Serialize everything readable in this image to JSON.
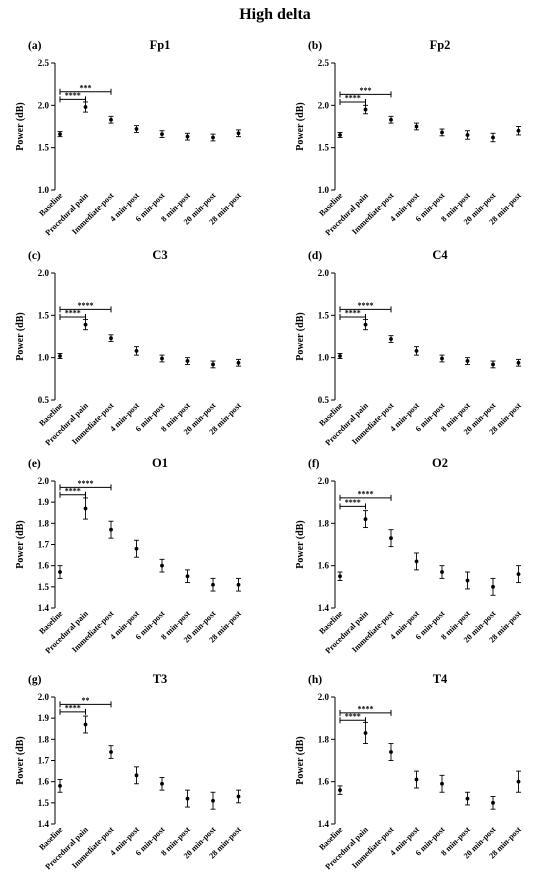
{
  "figure_title": "High delta",
  "chart_data": [
    {
      "type": "scatter",
      "panel": "(a)",
      "title": "Fp1",
      "ylabel": "Power (dB)",
      "ylim": [
        1.0,
        2.5
      ],
      "yticks": [
        1.0,
        1.5,
        2.0,
        2.5
      ],
      "ytick_labels": [
        "1.0",
        "1.5",
        "2.0",
        "2.5"
      ],
      "categories": [
        "Baseline",
        "Procedural pain",
        "Immediate-post",
        "4 min-post",
        "6 min-post",
        "8 min-post",
        "20 min-post",
        "28 min-post"
      ],
      "values": [
        1.66,
        1.98,
        1.83,
        1.72,
        1.66,
        1.63,
        1.62,
        1.67
      ],
      "errors": [
        0.03,
        0.06,
        0.04,
        0.04,
        0.04,
        0.04,
        0.04,
        0.04
      ],
      "annotations": [
        {
          "from": "Baseline",
          "to": "Procedural pain",
          "y": 2.07,
          "label": "****"
        },
        {
          "from": "Baseline",
          "to": "Immediate-post",
          "y": 2.16,
          "label": "***"
        }
      ]
    },
    {
      "type": "scatter",
      "panel": "(b)",
      "title": "Fp2",
      "ylabel": "Power (dB)",
      "ylim": [
        1.0,
        2.5
      ],
      "yticks": [
        1.0,
        1.5,
        2.0,
        2.5
      ],
      "ytick_labels": [
        "1.0",
        "1.5",
        "2.0",
        "2.5"
      ],
      "categories": [
        "Baseline",
        "Procedural pain",
        "Immediate-post",
        "4 min-post",
        "6 min-post",
        "8 min-post",
        "20 min-post",
        "28 min-post"
      ],
      "values": [
        1.65,
        1.95,
        1.83,
        1.75,
        1.68,
        1.65,
        1.62,
        1.7
      ],
      "errors": [
        0.03,
        0.05,
        0.04,
        0.04,
        0.04,
        0.05,
        0.05,
        0.05
      ],
      "annotations": [
        {
          "from": "Baseline",
          "to": "Procedural pain",
          "y": 2.04,
          "label": "****"
        },
        {
          "from": "Baseline",
          "to": "Immediate-post",
          "y": 2.13,
          "label": "***"
        }
      ]
    },
    {
      "type": "scatter",
      "panel": "(c)",
      "title": "C3",
      "ylabel": "Power (dB)",
      "ylim": [
        0.5,
        2.0
      ],
      "yticks": [
        0.5,
        1.0,
        1.5,
        2.0
      ],
      "ytick_labels": [
        "0.5",
        "1.0",
        "1.5",
        "2.0"
      ],
      "categories": [
        "Baseline",
        "Procedural pain",
        "Immediate-post",
        "4 min-post",
        "6 min-post",
        "8 min-post",
        "20 min-post",
        "28 min-post"
      ],
      "values": [
        1.02,
        1.39,
        1.23,
        1.08,
        0.99,
        0.96,
        0.92,
        0.94
      ],
      "errors": [
        0.03,
        0.06,
        0.04,
        0.05,
        0.04,
        0.04,
        0.04,
        0.04
      ],
      "annotations": [
        {
          "from": "Baseline",
          "to": "Procedural pain",
          "y": 1.48,
          "label": "****"
        },
        {
          "from": "Baseline",
          "to": "Immediate-post",
          "y": 1.57,
          "label": "****"
        }
      ]
    },
    {
      "type": "scatter",
      "panel": "(d)",
      "title": "C4",
      "ylabel": "Power (dB)",
      "ylim": [
        0.5,
        2.0
      ],
      "yticks": [
        0.5,
        1.0,
        1.5,
        2.0
      ],
      "ytick_labels": [
        "0.5",
        "1.0",
        "1.5",
        "2.0"
      ],
      "categories": [
        "Baseline",
        "Procedural pain",
        "Immediate-post",
        "4 min-post",
        "6 min-post",
        "8 min-post",
        "20 min-post",
        "28 min-post"
      ],
      "values": [
        1.02,
        1.39,
        1.22,
        1.08,
        0.99,
        0.96,
        0.92,
        0.94
      ],
      "errors": [
        0.03,
        0.06,
        0.04,
        0.05,
        0.04,
        0.04,
        0.04,
        0.04
      ],
      "annotations": [
        {
          "from": "Baseline",
          "to": "Procedural pain",
          "y": 1.48,
          "label": "****"
        },
        {
          "from": "Baseline",
          "to": "Immediate-post",
          "y": 1.57,
          "label": "****"
        }
      ]
    },
    {
      "type": "scatter",
      "panel": "(e)",
      "title": "O1",
      "ylabel": "Power (dB)",
      "ylim": [
        1.4,
        2.0
      ],
      "yticks": [
        1.4,
        1.5,
        1.6,
        1.7,
        1.8,
        1.9,
        2.0
      ],
      "ytick_labels": [
        "1.4",
        "1.5",
        "1.6",
        "1.7",
        "1.8",
        "1.9",
        "2.0"
      ],
      "categories": [
        "Baseline",
        "Procedural pain",
        "Immediate-post",
        "4 min-post",
        "6 min-post",
        "8 min-post",
        "20 min-post",
        "28 min-post"
      ],
      "values": [
        1.57,
        1.87,
        1.77,
        1.68,
        1.6,
        1.55,
        1.51,
        1.51
      ],
      "errors": [
        0.03,
        0.05,
        0.04,
        0.04,
        0.03,
        0.03,
        0.03,
        0.03
      ],
      "annotations": [
        {
          "from": "Baseline",
          "to": "Procedural pain",
          "y": 1.935,
          "label": "****"
        },
        {
          "from": "Baseline",
          "to": "Immediate-post",
          "y": 1.97,
          "label": "****"
        }
      ]
    },
    {
      "type": "scatter",
      "panel": "(f)",
      "title": "O2",
      "ylabel": "Power (dB)",
      "ylim": [
        1.4,
        2.0
      ],
      "yticks": [
        1.4,
        1.6,
        1.8,
        2.0
      ],
      "ytick_labels": [
        "1.4",
        "1.6",
        "1.8",
        "2.0"
      ],
      "categories": [
        "Baseline",
        "Procedural pain",
        "Immediate-post",
        "4 min-post",
        "6 min-post",
        "8 min-post",
        "20 min-post",
        "28 min-post"
      ],
      "values": [
        1.55,
        1.82,
        1.73,
        1.62,
        1.57,
        1.53,
        1.5,
        1.56
      ],
      "errors": [
        0.02,
        0.04,
        0.04,
        0.04,
        0.03,
        0.04,
        0.04,
        0.04
      ],
      "annotations": [
        {
          "from": "Baseline",
          "to": "Procedural pain",
          "y": 1.88,
          "label": "****"
        },
        {
          "from": "Baseline",
          "to": "Immediate-post",
          "y": 1.92,
          "label": "****"
        }
      ]
    },
    {
      "type": "scatter",
      "panel": "(g)",
      "title": "T3",
      "ylabel": "Power (dB)",
      "ylim": [
        1.4,
        2.0
      ],
      "yticks": [
        1.4,
        1.5,
        1.6,
        1.7,
        1.8,
        1.9,
        2.0
      ],
      "ytick_labels": [
        "1.4",
        "1.5",
        "1.6",
        "1.7",
        "1.8",
        "1.9",
        "2.0"
      ],
      "categories": [
        "Baseline",
        "Procedural pain",
        "Immediate-post",
        "4 min-post",
        "6 min-post",
        "8 min-post",
        "20 min-post",
        "28 min-post"
      ],
      "values": [
        1.58,
        1.87,
        1.74,
        1.63,
        1.59,
        1.52,
        1.51,
        1.53
      ],
      "errors": [
        0.03,
        0.04,
        0.03,
        0.04,
        0.03,
        0.04,
        0.04,
        0.03
      ],
      "annotations": [
        {
          "from": "Baseline",
          "to": "Procedural pain",
          "y": 1.93,
          "label": "****"
        },
        {
          "from": "Baseline",
          "to": "Immediate-post",
          "y": 1.965,
          "label": "**"
        }
      ]
    },
    {
      "type": "scatter",
      "panel": "(h)",
      "title": "T4",
      "ylabel": "Power (dB)",
      "ylim": [
        1.4,
        2.0
      ],
      "yticks": [
        1.4,
        1.6,
        1.8,
        2.0
      ],
      "ytick_labels": [
        "1.4",
        "1.6",
        "1.8",
        "2.0"
      ],
      "categories": [
        "Baseline",
        "Procedural pain",
        "Immediate-post",
        "4 min-post",
        "6 min-post",
        "8 min-post",
        "20 min-post",
        "28 min-post"
      ],
      "values": [
        1.56,
        1.83,
        1.74,
        1.61,
        1.59,
        1.52,
        1.5,
        1.6
      ],
      "errors": [
        0.02,
        0.05,
        0.04,
        0.04,
        0.04,
        0.03,
        0.03,
        0.05
      ],
      "annotations": [
        {
          "from": "Baseline",
          "to": "Procedural pain",
          "y": 1.89,
          "label": "****"
        },
        {
          "from": "Baseline",
          "to": "Immediate-post",
          "y": 1.925,
          "label": "****"
        }
      ]
    }
  ]
}
